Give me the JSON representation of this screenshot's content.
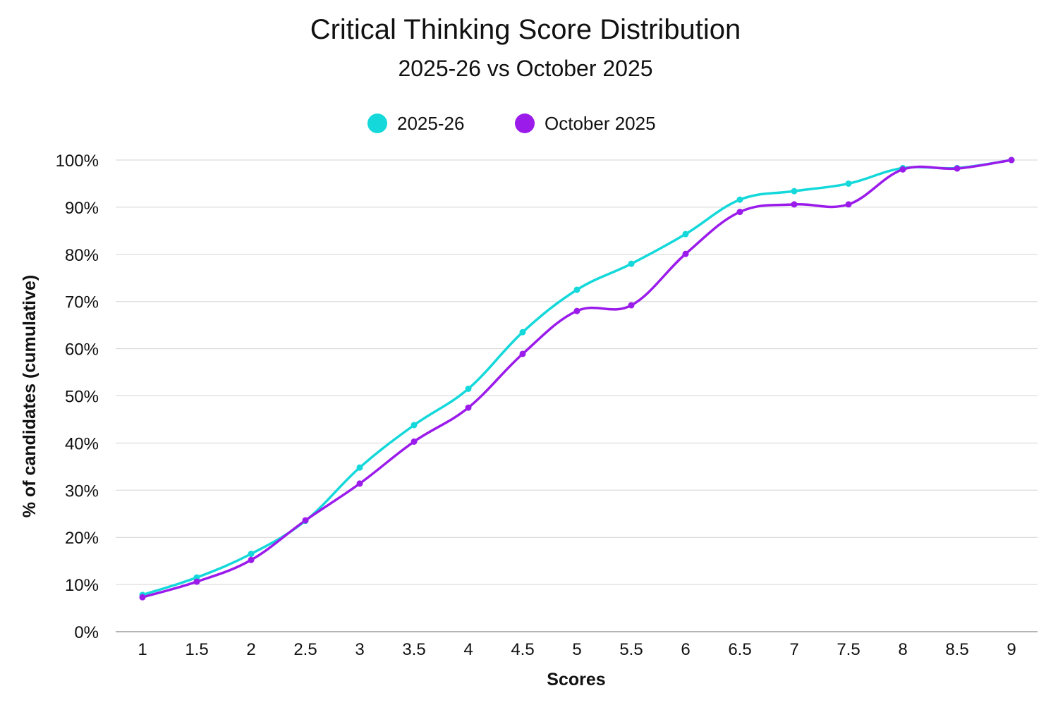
{
  "chart_data": {
    "type": "line",
    "title": "Critical Thinking Score Distribution",
    "subtitle": "2025-26 vs October 2025",
    "xlabel": "Scores",
    "ylabel": "% of candidates (cumulative)",
    "x": [
      "1",
      "1.5",
      "2",
      "2.5",
      "3",
      "3.5",
      "4",
      "4.5",
      "5",
      "5.5",
      "6",
      "6.5",
      "7",
      "7.5",
      "8",
      "8.5",
      "9"
    ],
    "ylim": [
      0,
      100
    ],
    "yticks": [
      "0%",
      "10%",
      "20%",
      "30%",
      "40%",
      "50%",
      "60%",
      "70%",
      "80%",
      "90%",
      "100%"
    ],
    "grid": true,
    "legend_position": "top-center",
    "series": [
      {
        "name": "2025-26",
        "color": "#14D8DA",
        "values": [
          7.8,
          11.5,
          16.5,
          23.5,
          34.8,
          43.8,
          51.5,
          63.5,
          72.5,
          78.0,
          84.3,
          91.6,
          93.4,
          95.0,
          98.3,
          98.3,
          100.0
        ]
      },
      {
        "name": "October 2025",
        "color": "#9B1BEB",
        "values": [
          7.3,
          10.6,
          15.2,
          23.6,
          31.4,
          40.3,
          47.5,
          58.9,
          68.0,
          69.2,
          80.1,
          89.0,
          90.6,
          90.6,
          98.0,
          98.2,
          100.0
        ]
      }
    ]
  }
}
